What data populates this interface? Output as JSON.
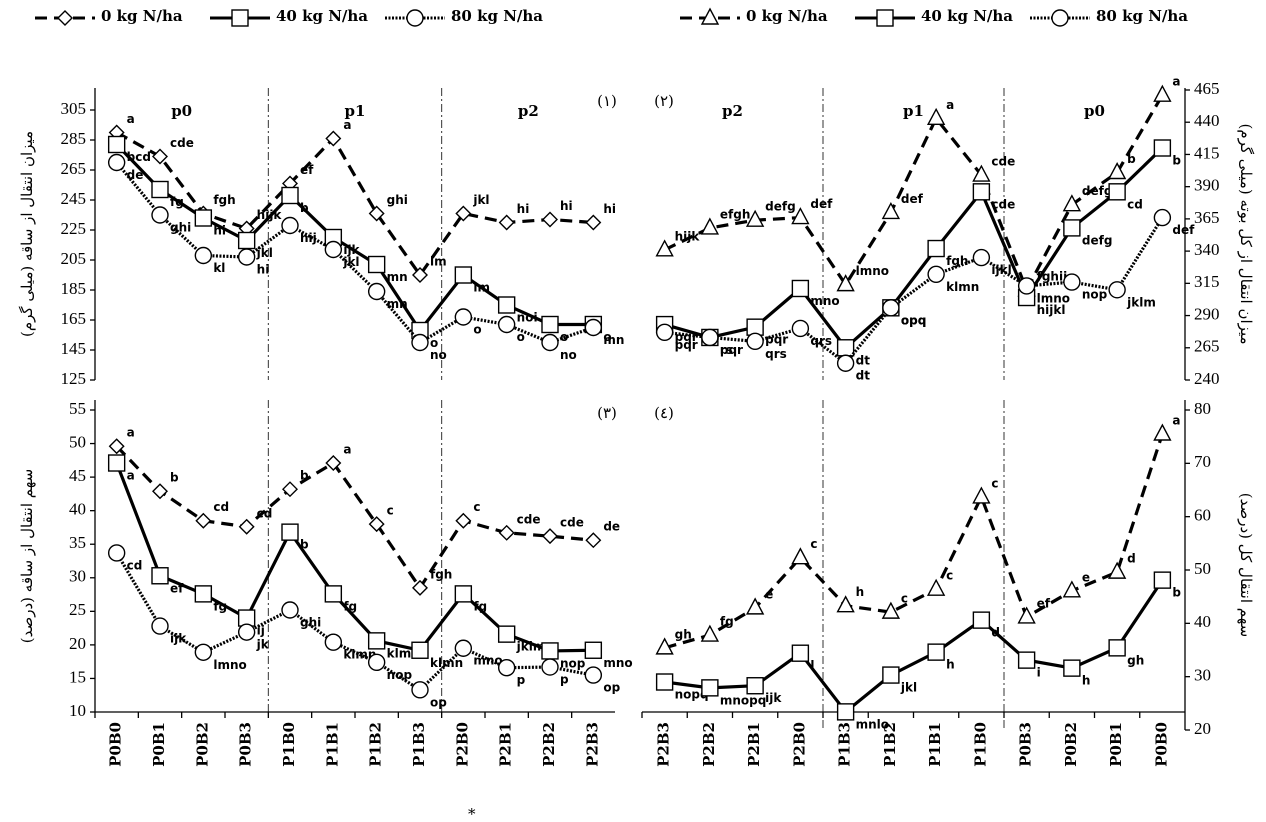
{
  "chart_data": [
    {
      "type": "line",
      "panel_label": "(۱)",
      "y_label": "میزان انتقال از ساقه (میلی گرم)",
      "sections": [
        "p0",
        "p1",
        "p2"
      ],
      "legend": true,
      "ylim": [
        125,
        305
      ],
      "yticks": [
        125,
        145,
        165,
        185,
        205,
        225,
        245,
        265,
        285,
        305
      ],
      "series": [
        {
          "name": "0 kg N/ha",
          "color": "#000000",
          "style": "dashed",
          "marker": "diamond",
          "values": [
            290,
            274,
            236,
            226,
            256,
            286,
            236,
            195,
            236,
            230,
            232,
            230
          ],
          "letters": [
            "a",
            "cde",
            "fgh",
            "hijk",
            "ef",
            "a",
            "ghi",
            "lm",
            "jkl",
            "hi",
            "hi",
            "hi"
          ]
        },
        {
          "name": "40 kg N/ha",
          "color": "#000000",
          "style": "solid",
          "marker": "square",
          "values": [
            282,
            252,
            233,
            218,
            248,
            220,
            202,
            158,
            195,
            175,
            162,
            162
          ],
          "letters": [
            "bcd",
            "fg",
            "hi",
            "jkl",
            "b",
            "ijk",
            "mn",
            "o",
            "lm",
            "noi",
            "o",
            "o"
          ]
        },
        {
          "name": "80 kg N/ha",
          "color": "#000000",
          "style": "dotted",
          "marker": "circle",
          "values": [
            270,
            235,
            208,
            207,
            228,
            212,
            184,
            150,
            167,
            162,
            150,
            160
          ],
          "letters": [
            "de",
            "ghi",
            "kl",
            "hi",
            "hij",
            "jkl",
            "mn",
            "no",
            "o",
            "o",
            "no",
            "mn"
          ]
        }
      ]
    },
    {
      "type": "line",
      "panel_label": "(۲)",
      "y_label": "میزان انتقال از کل بوته (میلی گرم)",
      "sections": [
        "p2",
        "p1",
        "p0"
      ],
      "legend": true,
      "ylim": [
        240,
        465
      ],
      "yticks": [
        240,
        265,
        290,
        315,
        340,
        365,
        390,
        415,
        440,
        465
      ],
      "series": [
        {
          "name": "0 kg N/ha",
          "color": "#000000",
          "style": "dashed",
          "marker": "triangle",
          "values": [
            341,
            358,
            364,
            366,
            314,
            370,
            443,
            399,
            310,
            376,
            401,
            461
          ],
          "letters": [
            "hijk",
            "efgh",
            "defg",
            "def",
            "lmno",
            "def",
            "a",
            "cde",
            "fghij",
            "defg",
            "b",
            "a"
          ]
        },
        {
          "name": "40 kg N/ha",
          "color": "#000000",
          "style": "solid",
          "marker": "square",
          "values": [
            283,
            273,
            281,
            311,
            265,
            296,
            342,
            386,
            304,
            358,
            386,
            420
          ],
          "letters": [
            "pqr",
            "pqr",
            "pqr",
            "mno",
            "dt",
            "opq",
            "fgh",
            "cde",
            "hijkl",
            "defg",
            "cd",
            "b"
          ]
        },
        {
          "name": "80 kg N/ha",
          "color": "#000000",
          "style": "dotted",
          "marker": "circle",
          "values": [
            277,
            273,
            270,
            280,
            253,
            296,
            322,
            335,
            313,
            316,
            310,
            366
          ],
          "letters": [
            "pqr",
            "rs",
            "qrs",
            "qrs",
            "dt",
            "opq",
            "klmn",
            "ijkl",
            "lmno",
            "nop",
            "jklm",
            "def"
          ]
        }
      ]
    },
    {
      "type": "line",
      "panel_label": "(۳)",
      "y_label": "سهم انتقال از ساقه (درصد)",
      "categories": [
        "P0B0",
        "P0B1",
        "P0B2",
        "P0B3",
        "P1B0",
        "P1B1",
        "P1B2",
        "P1B3",
        "P2B0",
        "P2B1",
        "P2B2",
        "P2B3"
      ],
      "ylim": [
        10,
        55
      ],
      "yticks": [
        10,
        15,
        20,
        25,
        30,
        35,
        40,
        45,
        50,
        55
      ],
      "series": [
        {
          "color": "#000000",
          "style": "dashed",
          "marker": "diamond",
          "values": [
            49.6,
            42.9,
            38.5,
            37.6,
            43.2,
            47.1,
            38.0,
            28.5,
            38.5,
            36.7,
            36.2,
            35.6
          ],
          "letters": [
            "a",
            "b",
            "cd",
            "cd",
            "b",
            "a",
            "c",
            "fgh",
            "c",
            "cde",
            "cde",
            "de"
          ]
        },
        {
          "color": "#000000",
          "style": "solid",
          "marker": "square",
          "values": [
            47.1,
            30.3,
            27.6,
            24.0,
            36.8,
            27.6,
            20.6,
            19.2,
            27.6,
            21.6,
            19.1,
            19.2
          ],
          "letters": [
            "a",
            "ef",
            "fg",
            "ij",
            "b",
            "fg",
            "klmn",
            "klmn",
            "fg",
            "jklm",
            "nop",
            "mno"
          ]
        },
        {
          "color": "#000000",
          "style": "dotted",
          "marker": "circle",
          "values": [
            33.7,
            22.8,
            18.9,
            21.9,
            25.2,
            20.4,
            17.4,
            13.3,
            19.5,
            16.6,
            16.7,
            15.5
          ],
          "letters": [
            "cd",
            "ijk",
            "lmno",
            "jk",
            "ghi",
            "klmn",
            "nop",
            "op",
            "mno",
            "p",
            "p",
            "op"
          ]
        }
      ]
    },
    {
      "type": "line",
      "panel_label": "(٤)",
      "y_label": "سهم انتقال کل (درصد)",
      "categories": [
        "P2B3",
        "P2B2",
        "P2B1",
        "P2B0",
        "P1B3",
        "P1B2",
        "P1B1",
        "P1B0",
        "P0B3",
        "P0B2",
        "P0B1",
        "P0B0"
      ],
      "ylim": [
        20,
        80
      ],
      "yticks": [
        20,
        30,
        40,
        50,
        60,
        70,
        80
      ],
      "series": [
        {
          "color": "#000000",
          "style": "dashed",
          "marker": "triangle",
          "values": [
            35.4,
            37.8,
            42.9,
            52.3,
            43.3,
            42.1,
            46.4,
            63.7,
            41.2,
            46.1,
            49.6,
            75.5
          ],
          "letters": [
            "gh",
            "fg",
            "e",
            "c",
            "h",
            "c",
            "c",
            "c",
            "ef",
            "e",
            "d",
            "a"
          ]
        },
        {
          "color": "#000000",
          "style": "solid",
          "marker": "square",
          "values": [
            29,
            27.9,
            28.3,
            34.4,
            23.4,
            30.3,
            34.6,
            40.6,
            33.1,
            31.6,
            35.4,
            48.1
          ],
          "letters": [
            "nopq",
            "mnopq",
            "ijk",
            "l",
            "mnlo",
            "jkl",
            "h",
            "d",
            "i",
            "h",
            "gh",
            "b"
          ]
        }
      ]
    }
  ],
  "footnote_mark": "*"
}
